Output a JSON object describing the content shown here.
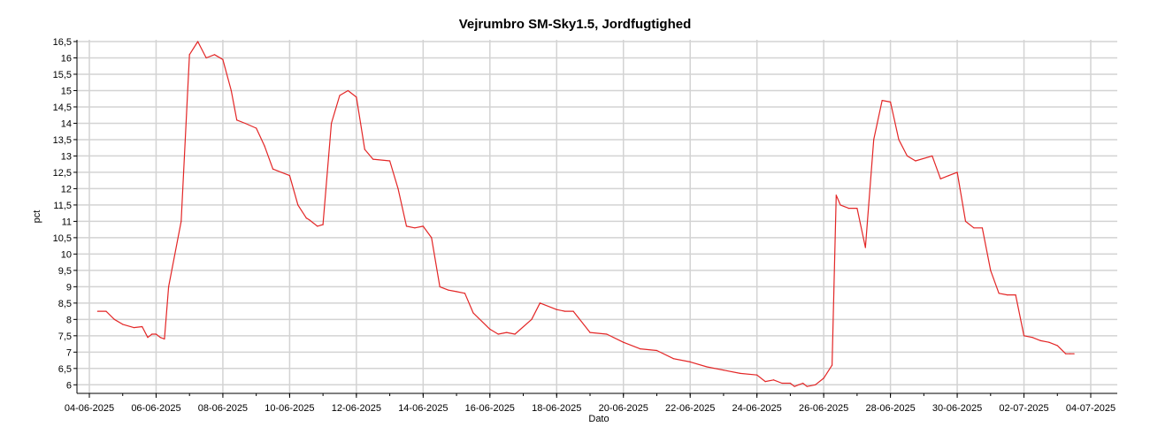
{
  "chart_data": {
    "type": "line",
    "title": "Vejrumbro SM-Sky1.5, Jordfugtighed",
    "xlabel": "Dato",
    "ylabel": "pct",
    "xlim": [
      "2025-06-04",
      "2025-07-04"
    ],
    "ylim": [
      5.9,
      16.5
    ],
    "x_ticks": [
      "04-06-2025",
      "06-06-2025",
      "08-06-2025",
      "10-06-2025",
      "12-06-2025",
      "14-06-2025",
      "16-06-2025",
      "18-06-2025",
      "20-06-2025",
      "22-06-2025",
      "24-06-2025",
      "26-06-2025",
      "28-06-2025",
      "30-06-2025",
      "02-07-2025",
      "04-07-2025"
    ],
    "y_ticks": [
      "6",
      "6,5",
      "7",
      "7,5",
      "8",
      "8,5",
      "9",
      "9,5",
      "10",
      "10,5",
      "11",
      "11,5",
      "12",
      "12,5",
      "13",
      "13,5",
      "14",
      "14,5",
      "15",
      "15,5",
      "16",
      "16,5"
    ],
    "grid": true,
    "series": [
      {
        "color": "#e32626",
        "x": [
          "2025-06-04 06:00",
          "2025-06-04 12:00",
          "2025-06-04 18:00",
          "2025-06-05 00:00",
          "2025-06-05 08:00",
          "2025-06-05 14:00",
          "2025-06-05 18:00",
          "2025-06-05 21:00",
          "2025-06-06 00:00",
          "2025-06-06 03:00",
          "2025-06-06 06:00",
          "2025-06-06 09:00",
          "2025-06-06 18:00",
          "2025-06-07 00:00",
          "2025-06-07 06:00",
          "2025-06-07 12:00",
          "2025-06-07 18:00",
          "2025-06-08 00:00",
          "2025-06-08 06:00",
          "2025-06-08 10:00",
          "2025-06-08 16:00",
          "2025-06-09 00:00",
          "2025-06-09 06:00",
          "2025-06-09 12:00",
          "2025-06-09 18:00",
          "2025-06-10 00:00",
          "2025-06-10 06:00",
          "2025-06-10 12:00",
          "2025-06-10 14:00",
          "2025-06-10 20:00",
          "2025-06-11 00:00",
          "2025-06-11 06:00",
          "2025-06-11 12:00",
          "2025-06-11 18:00",
          "2025-06-12 00:00",
          "2025-06-12 06:00",
          "2025-06-12 12:00",
          "2025-06-13 00:00",
          "2025-06-13 06:00",
          "2025-06-13 12:00",
          "2025-06-13 18:00",
          "2025-06-14 00:00",
          "2025-06-14 06:00",
          "2025-06-14 12:00",
          "2025-06-14 18:00",
          "2025-06-15 00:00",
          "2025-06-15 06:00",
          "2025-06-15 12:00",
          "2025-06-16 00:00",
          "2025-06-16 06:00",
          "2025-06-16 12:00",
          "2025-06-16 18:00",
          "2025-06-17 06:00",
          "2025-06-17 12:00",
          "2025-06-18 00:00",
          "2025-06-18 06:00",
          "2025-06-18 12:00",
          "2025-06-19 00:00",
          "2025-06-19 12:00",
          "2025-06-20 00:00",
          "2025-06-20 12:00",
          "2025-06-21 00:00",
          "2025-06-21 12:00",
          "2025-06-22 00:00",
          "2025-06-22 12:00",
          "2025-06-23 00:00",
          "2025-06-23 12:00",
          "2025-06-24 00:00",
          "2025-06-24 06:00",
          "2025-06-24 12:00",
          "2025-06-24 18:00",
          "2025-06-25 00:00",
          "2025-06-25 03:00",
          "2025-06-25 06:00",
          "2025-06-25 09:00",
          "2025-06-25 12:00",
          "2025-06-25 18:00",
          "2025-06-26 00:00",
          "2025-06-26 06:00",
          "2025-06-26 09:00",
          "2025-06-26 12:00",
          "2025-06-26 18:00",
          "2025-06-27 00:00",
          "2025-06-27 06:00",
          "2025-06-27 12:00",
          "2025-06-27 18:00",
          "2025-06-28 00:00",
          "2025-06-28 06:00",
          "2025-06-28 12:00",
          "2025-06-28 18:00",
          "2025-06-29 06:00",
          "2025-06-29 12:00",
          "2025-06-29 18:00",
          "2025-06-30 00:00",
          "2025-06-30 06:00",
          "2025-06-30 12:00",
          "2025-06-30 18:00",
          "2025-07-01 00:00",
          "2025-07-01 06:00",
          "2025-07-01 12:00",
          "2025-07-01 18:00",
          "2025-07-02 00:00",
          "2025-07-02 06:00",
          "2025-07-02 12:00",
          "2025-07-02 18:00",
          "2025-07-03 00:00",
          "2025-07-03 06:00",
          "2025-07-03 09:00",
          "2025-07-03 12:00"
        ],
        "y": [
          8.25,
          8.25,
          8.0,
          7.85,
          7.75,
          7.78,
          7.45,
          7.55,
          7.55,
          7.45,
          7.4,
          9.0,
          11.0,
          16.1,
          16.5,
          16.0,
          16.1,
          15.95,
          15.0,
          14.1,
          14.0,
          13.85,
          13.3,
          12.6,
          12.5,
          12.4,
          11.5,
          11.1,
          11.05,
          10.85,
          10.9,
          14.0,
          14.85,
          15.0,
          14.8,
          13.2,
          12.9,
          12.85,
          12.0,
          10.85,
          10.8,
          10.85,
          10.5,
          9.0,
          8.9,
          8.85,
          8.8,
          8.2,
          7.7,
          7.55,
          7.6,
          7.55,
          8.0,
          8.5,
          8.3,
          8.25,
          8.25,
          7.6,
          7.55,
          7.3,
          7.1,
          7.05,
          6.8,
          6.7,
          6.55,
          6.45,
          6.35,
          6.3,
          6.1,
          6.15,
          6.05,
          6.05,
          5.95,
          6.0,
          6.05,
          5.95,
          6.0,
          6.2,
          6.6,
          11.8,
          11.5,
          11.4,
          11.4,
          10.2,
          13.5,
          14.7,
          14.65,
          13.5,
          13.0,
          12.85,
          13.0,
          12.3,
          12.4,
          12.5,
          11.0,
          10.8,
          10.8,
          9.5,
          8.8,
          8.75,
          8.75,
          7.5,
          7.45,
          7.35,
          7.3,
          7.2,
          6.95,
          6.95,
          6.95
        ]
      }
    ]
  }
}
